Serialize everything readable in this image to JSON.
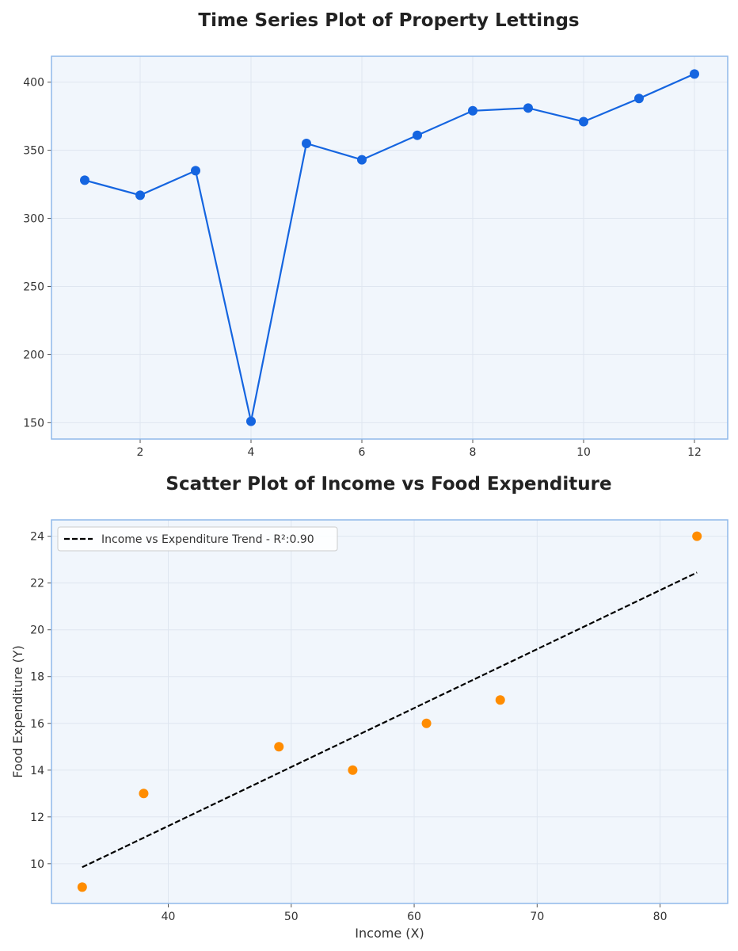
{
  "chart_data": [
    {
      "type": "line",
      "title": "Time Series Plot of Property Lettings",
      "xlabel": "",
      "ylabel": "",
      "x": [
        1,
        2,
        3,
        4,
        5,
        6,
        7,
        8,
        9,
        10,
        11,
        12
      ],
      "series": [
        {
          "values": [
            328,
            317,
            335,
            151,
            355,
            343,
            361,
            379,
            381,
            371,
            388,
            406
          ]
        }
      ],
      "xlim": [
        0.4,
        12.6
      ],
      "ylim": [
        138,
        419
      ],
      "xticks": [
        2,
        4,
        6,
        8,
        10,
        12
      ],
      "yticks": [
        150,
        200,
        250,
        300,
        350,
        400
      ],
      "grid": true,
      "color": "#1565e0",
      "background": "#f1f6fc",
      "frame_color": "#8fb8ea"
    },
    {
      "type": "scatter",
      "title": "Scatter Plot of Income vs Food Expenditure",
      "xlabel": "Income (X)",
      "ylabel": "Food Expenditure (Y)",
      "points": [
        {
          "x": 33,
          "y": 9
        },
        {
          "x": 38,
          "y": 13
        },
        {
          "x": 49,
          "y": 15
        },
        {
          "x": 55,
          "y": 14
        },
        {
          "x": 61,
          "y": 16
        },
        {
          "x": 67,
          "y": 17
        },
        {
          "x": 83,
          "y": 24
        }
      ],
      "trend_line": {
        "label": "Income vs Expenditure Trend - R²:0.90",
        "x": [
          33,
          83
        ],
        "y": [
          9.85,
          22.45
        ],
        "style": "dashed"
      },
      "xlim": [
        30.5,
        85.5
      ],
      "ylim": [
        8.3,
        24.7
      ],
      "xticks": [
        40,
        50,
        60,
        70,
        80
      ],
      "yticks": [
        10,
        12,
        14,
        16,
        18,
        20,
        22,
        24
      ],
      "grid": true,
      "legend_position": "top-left",
      "point_color": "#ff8c00",
      "line_color": "#000000",
      "background": "#f1f6fc",
      "frame_color": "#8fb8ea"
    }
  ]
}
